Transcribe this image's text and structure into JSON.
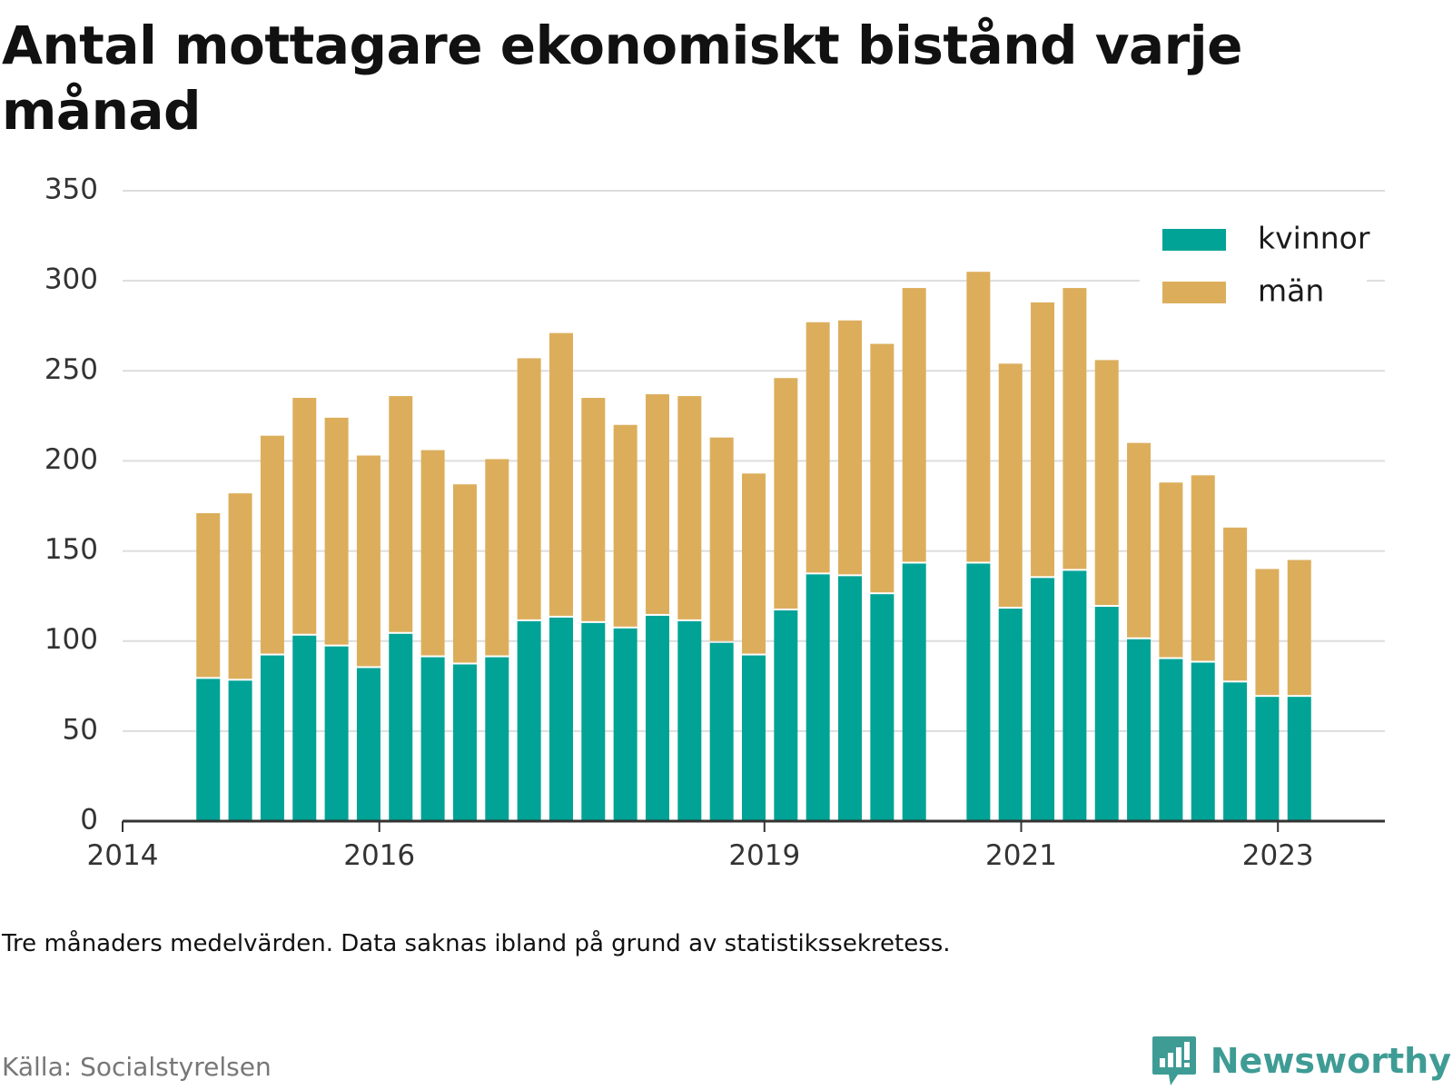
{
  "title": "Antal mottagare ekonomiskt bistånd varje månad",
  "note": "Tre månaders medelvärden. Data saknas ibland på grund av statistikssekretess.",
  "source": "Källa: Socialstyrelsen",
  "brand": {
    "name": "Newsworthy",
    "icon": "newsworthy-logo-icon"
  },
  "colors": {
    "kvinnor": "#00a396",
    "man": "#dcae5c",
    "grid": "#dddddd",
    "axis": "#333333"
  },
  "chart_data": {
    "type": "bar",
    "stacked": true,
    "title": "Antal mottagare ekonomiskt bistånd varje månad",
    "xlabel": "",
    "ylabel": "",
    "ylim": [
      0,
      350
    ],
    "yticks": [
      0,
      50,
      100,
      150,
      200,
      250,
      300,
      350
    ],
    "grid": true,
    "legend_position": "top-right",
    "xlim": [
      "2014-01",
      "2023-11"
    ],
    "x_tick_labels": [
      {
        "label": "2014",
        "at": "2014-01"
      },
      {
        "label": "2016",
        "at": "2016-01"
      },
      {
        "label": "2019",
        "at": "2019-01"
      },
      {
        "label": "2021",
        "at": "2021-01"
      },
      {
        "label": "2023",
        "at": "2023-01"
      }
    ],
    "categories": [
      "2014-09",
      "2014-12",
      "2015-03",
      "2015-06",
      "2015-09",
      "2015-12",
      "2016-03",
      "2016-06",
      "2016-09",
      "2016-12",
      "2017-03",
      "2017-06",
      "2017-09",
      "2017-12",
      "2018-03",
      "2018-06",
      "2018-09",
      "2018-12",
      "2019-03",
      "2019-06",
      "2019-09",
      "2019-12",
      "2020-03",
      "2020-09",
      "2020-12",
      "2021-03",
      "2021-06",
      "2021-09",
      "2021-12",
      "2022-03",
      "2022-06",
      "2022-09",
      "2022-12",
      "2023-03"
    ],
    "series": [
      {
        "name": "kvinnor",
        "values": [
          79,
          78,
          92,
          103,
          97,
          85,
          104,
          91,
          87,
          91,
          111,
          113,
          110,
          107,
          114,
          111,
          99,
          92,
          117,
          137,
          136,
          126,
          143,
          143,
          118,
          135,
          139,
          119,
          101,
          90,
          88,
          77,
          69,
          69
        ]
      },
      {
        "name": "män",
        "values": [
          92,
          104,
          122,
          132,
          127,
          118,
          132,
          115,
          100,
          110,
          146,
          158,
          125,
          113,
          123,
          125,
          114,
          101,
          129,
          140,
          142,
          139,
          153,
          162,
          136,
          153,
          157,
          137,
          109,
          98,
          104,
          86,
          71,
          76
        ]
      }
    ]
  }
}
